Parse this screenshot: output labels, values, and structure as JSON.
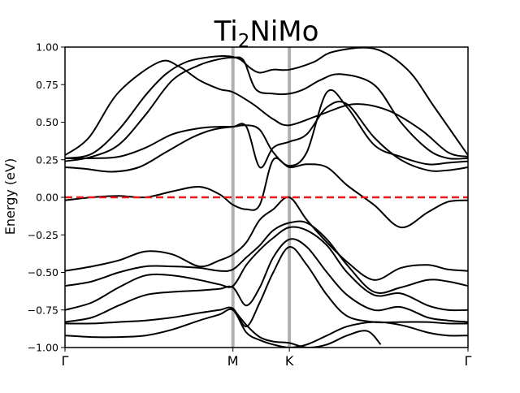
{
  "chart_data": {
    "type": "line",
    "title": {
      "base": "Ti",
      "sub": "2",
      "rest": "NiMo"
    },
    "ylabel": "Energy (eV)",
    "xlabel": "",
    "ylim": [
      -1.0,
      1.0
    ],
    "xlim": [
      0,
      3.0
    ],
    "grid": false,
    "y_ticks": [
      {
        "value": -1.0,
        "label": "−1.00"
      },
      {
        "value": -0.75,
        "label": "−0.75"
      },
      {
        "value": -0.5,
        "label": "−0.50"
      },
      {
        "value": -0.25,
        "label": "−0.25"
      },
      {
        "value": 0.0,
        "label": "0.00"
      },
      {
        "value": 0.25,
        "label": "0.25"
      },
      {
        "value": 0.5,
        "label": "0.50"
      },
      {
        "value": 0.75,
        "label": "0.75"
      },
      {
        "value": 1.0,
        "label": "1.00"
      }
    ],
    "high_symmetry_points": [
      {
        "label": "Γ",
        "x": 0.0
      },
      {
        "label": "M",
        "x": 1.25
      },
      {
        "label": "K",
        "x": 1.67
      },
      {
        "label": "Γ",
        "x": 3.0
      }
    ],
    "fermi_level": {
      "value": 0.0,
      "color": "#e41a1c"
    },
    "colors": {
      "bands": "#000000",
      "kpath_lines": "#b0b0b0",
      "fermi": "#e41a1c"
    },
    "series": [
      {
        "x": [
          0,
          0.18,
          0.4,
          0.7,
          0.85,
          1.0,
          1.15,
          1.25,
          1.4,
          1.55,
          1.67,
          1.9,
          2.15,
          2.4,
          2.65,
          2.85,
          3.0
        ],
        "values": [
          0.28,
          0.4,
          0.7,
          0.9,
          0.87,
          0.78,
          0.72,
          0.7,
          0.62,
          0.52,
          0.48,
          0.55,
          0.62,
          0.58,
          0.45,
          0.3,
          0.27
        ]
      },
      {
        "x": [
          0,
          0.2,
          0.4,
          0.6,
          0.75,
          0.9,
          1.05,
          1.2,
          1.3,
          1.38,
          1.45,
          1.55,
          1.67,
          1.85,
          2.0,
          2.3,
          2.55,
          2.75,
          3.0
        ],
        "values": [
          0.26,
          0.29,
          0.45,
          0.68,
          0.82,
          0.9,
          0.93,
          0.94,
          0.92,
          0.86,
          0.83,
          0.85,
          0.85,
          0.9,
          0.97,
          0.99,
          0.85,
          0.6,
          0.28
        ]
      },
      {
        "x": [
          0,
          0.2,
          0.4,
          0.6,
          0.8,
          1.0,
          1.15,
          1.25,
          1.33,
          1.42,
          1.55,
          1.67,
          1.78,
          1.9,
          2.05,
          2.3,
          2.5,
          2.7,
          2.85,
          3.0
        ],
        "values": [
          0.24,
          0.27,
          0.35,
          0.55,
          0.78,
          0.88,
          0.92,
          0.93,
          0.91,
          0.72,
          0.69,
          0.69,
          0.72,
          0.78,
          0.82,
          0.75,
          0.5,
          0.32,
          0.26,
          0.26
        ]
      },
      {
        "x": [
          0,
          0.2,
          0.4,
          0.6,
          0.8,
          1.0,
          1.15,
          1.25,
          1.35,
          1.45,
          1.55,
          1.67,
          1.8,
          1.95,
          2.1,
          2.3,
          2.5,
          2.7,
          2.85,
          3.0
        ],
        "values": [
          0.26,
          0.26,
          0.27,
          0.33,
          0.42,
          0.46,
          0.47,
          0.47,
          0.48,
          0.45,
          0.3,
          0.21,
          0.3,
          0.7,
          0.6,
          0.35,
          0.27,
          0.22,
          0.23,
          0.24
        ]
      },
      {
        "x": [
          0,
          0.15,
          0.35,
          0.55,
          0.75,
          0.95,
          1.1,
          1.25,
          1.35,
          1.45,
          1.55,
          1.67,
          1.8,
          1.95,
          2.1,
          2.3,
          2.5,
          2.7,
          2.85,
          3.0
        ],
        "values": [
          0.2,
          0.19,
          0.17,
          0.2,
          0.3,
          0.4,
          0.45,
          0.47,
          0.47,
          0.2,
          0.33,
          0.37,
          0.42,
          0.6,
          0.62,
          0.4,
          0.25,
          0.18,
          0.18,
          0.2
        ]
      },
      {
        "x": [
          0,
          0.2,
          0.4,
          0.6,
          0.8,
          1.0,
          1.15,
          1.25,
          1.35,
          1.45,
          1.55,
          1.67,
          1.8,
          1.95,
          2.1,
          2.3,
          2.5,
          2.7,
          2.85,
          3.0
        ],
        "values": [
          -0.02,
          0.0,
          0.01,
          0.0,
          0.04,
          0.07,
          0.02,
          -0.05,
          -0.08,
          -0.05,
          0.25,
          0.2,
          0.22,
          0.2,
          0.08,
          -0.05,
          -0.2,
          -0.1,
          -0.03,
          -0.02
        ]
      },
      {
        "x": [
          0,
          0.2,
          0.4,
          0.6,
          0.8,
          1.0,
          1.15,
          1.25,
          1.35,
          1.45,
          1.55,
          1.67,
          1.8,
          1.95,
          2.1,
          2.3,
          2.5,
          2.7,
          2.85,
          3.0
        ],
        "values": [
          -0.49,
          -0.46,
          -0.42,
          -0.36,
          -0.38,
          -0.46,
          -0.42,
          -0.38,
          -0.3,
          -0.15,
          -0.08,
          0.0,
          -0.15,
          -0.3,
          -0.43,
          -0.55,
          -0.47,
          -0.45,
          -0.48,
          -0.49
        ]
      },
      {
        "x": [
          0,
          0.2,
          0.4,
          0.6,
          0.8,
          1.0,
          1.15,
          1.25,
          1.35,
          1.45,
          1.55,
          1.67,
          1.8,
          1.95,
          2.1,
          2.3,
          2.5,
          2.7,
          2.85,
          3.0
        ],
        "values": [
          -0.59,
          -0.56,
          -0.5,
          -0.46,
          -0.46,
          -0.47,
          -0.49,
          -0.48,
          -0.4,
          -0.32,
          -0.22,
          -0.17,
          -0.17,
          -0.28,
          -0.45,
          -0.63,
          -0.6,
          -0.55,
          -0.56,
          -0.59
        ]
      },
      {
        "x": [
          0,
          0.2,
          0.4,
          0.6,
          0.8,
          1.0,
          1.15,
          1.25,
          1.35,
          1.45,
          1.55,
          1.67,
          1.8,
          1.95,
          2.1,
          2.3,
          2.5,
          2.7,
          2.85,
          3.0
        ],
        "values": [
          -0.75,
          -0.7,
          -0.6,
          -0.52,
          -0.52,
          -0.55,
          -0.58,
          -0.59,
          -0.45,
          -0.35,
          -0.27,
          -0.2,
          -0.22,
          -0.32,
          -0.5,
          -0.65,
          -0.64,
          -0.72,
          -0.75,
          -0.75
        ]
      },
      {
        "x": [
          0,
          0.2,
          0.4,
          0.6,
          0.8,
          1.0,
          1.15,
          1.25,
          1.35,
          1.45,
          1.55,
          1.67,
          1.8,
          1.95,
          2.1,
          2.3,
          2.5,
          2.7,
          2.85,
          3.0
        ],
        "values": [
          -0.83,
          -0.8,
          -0.72,
          -0.65,
          -0.63,
          -0.62,
          -0.61,
          -0.6,
          -0.72,
          -0.6,
          -0.4,
          -0.28,
          -0.33,
          -0.5,
          -0.65,
          -0.75,
          -0.73,
          -0.8,
          -0.82,
          -0.83
        ]
      },
      {
        "x": [
          0,
          0.2,
          0.4,
          0.6,
          0.8,
          1.0,
          1.15,
          1.25,
          1.35,
          1.45,
          1.55,
          1.67,
          1.8,
          1.95,
          2.1,
          2.3,
          2.5,
          2.7,
          2.85,
          3.0
        ],
        "values": [
          -0.84,
          -0.84,
          -0.83,
          -0.82,
          -0.8,
          -0.77,
          -0.75,
          -0.74,
          -0.86,
          -0.7,
          -0.5,
          -0.33,
          -0.45,
          -0.65,
          -0.79,
          -0.83,
          -0.83,
          -0.83,
          -0.84,
          -0.84
        ]
      },
      {
        "x": [
          0,
          0.2,
          0.4,
          0.6,
          0.8,
          1.0,
          1.15,
          1.25,
          1.35,
          1.45,
          1.55,
          1.67,
          1.8,
          1.95,
          2.1,
          2.3,
          2.5,
          2.7,
          2.85,
          3.0
        ],
        "values": [
          -0.92,
          -0.93,
          -0.93,
          -0.92,
          -0.88,
          -0.82,
          -0.78,
          -0.75,
          -0.9,
          -0.95,
          -0.98,
          -1.0,
          -0.98,
          -0.92,
          -0.86,
          -0.83,
          -0.85,
          -0.9,
          -0.92,
          -0.92
        ]
      },
      {
        "x": [
          1.25,
          1.35,
          1.45,
          1.55,
          1.67,
          1.8,
          1.95,
          2.1,
          2.25,
          2.35
        ],
        "values": [
          -0.74,
          -0.85,
          -0.93,
          -0.96,
          -0.97,
          -1.0,
          -0.98,
          -0.92,
          -0.89,
          -0.98
        ]
      }
    ]
  }
}
